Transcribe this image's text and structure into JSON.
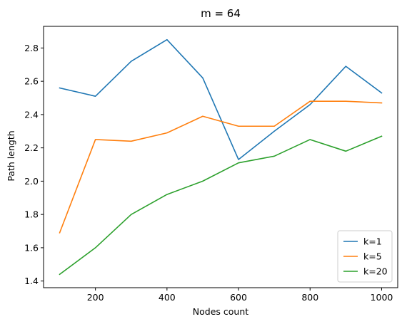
{
  "chart_data": {
    "type": "line",
    "title": "m = 64",
    "xlabel": "Nodes count",
    "ylabel": "Path length",
    "x": [
      100,
      200,
      300,
      400,
      500,
      600,
      700,
      800,
      900,
      1000
    ],
    "xlim": [
      55,
      1045
    ],
    "ylim": [
      1.36,
      2.93
    ],
    "xticks": [
      200,
      400,
      600,
      800,
      1000
    ],
    "xtick_labels": [
      "200",
      "400",
      "600",
      "800",
      "1000"
    ],
    "yticks": [
      1.4,
      1.6,
      1.8,
      2.0,
      2.2,
      2.4,
      2.6,
      2.8
    ],
    "ytick_labels": [
      "1.4",
      "1.6",
      "1.8",
      "2.0",
      "2.2",
      "2.4",
      "2.6",
      "2.8"
    ],
    "grid": false,
    "legend_position": "lower-right",
    "series": [
      {
        "name": "k=1",
        "color": "#1f77b4",
        "values": [
          2.56,
          2.51,
          2.72,
          2.85,
          2.62,
          2.13,
          2.3,
          2.46,
          2.69,
          2.53
        ]
      },
      {
        "name": "k=5",
        "color": "#ff7f0e",
        "values": [
          1.69,
          2.25,
          2.24,
          2.29,
          2.39,
          2.33,
          2.33,
          2.48,
          2.48,
          2.47
        ]
      },
      {
        "name": "k=20",
        "color": "#2ca02c",
        "values": [
          1.44,
          1.6,
          1.8,
          1.92,
          2.0,
          2.11,
          2.15,
          2.25,
          2.18,
          2.27
        ]
      }
    ]
  }
}
